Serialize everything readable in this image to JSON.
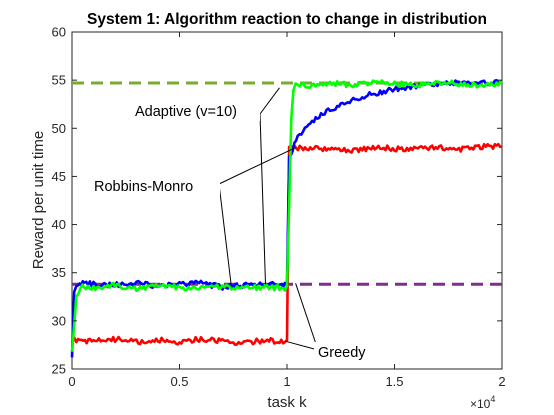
{
  "chart_data": {
    "type": "line",
    "title": "System 1: Algorithm reaction to change in distribution",
    "xlabel": "task k",
    "ylabel": "Reward per unit time",
    "x_multiplier": "×10",
    "x_multiplier_exp": "4",
    "xlim": [
      0,
      2
    ],
    "ylim": [
      25,
      60
    ],
    "xticks": [
      "0",
      "0.5",
      "1",
      "1.5",
      "2"
    ],
    "xtick_values": [
      0,
      0.5,
      1,
      1.5,
      2
    ],
    "yticks": [
      "25",
      "30",
      "35",
      "40",
      "45",
      "50",
      "55",
      "60"
    ],
    "ytick_values": [
      25,
      30,
      35,
      40,
      45,
      50,
      55,
      60
    ],
    "grid": false,
    "series": [
      {
        "color": "#ff0000",
        "x": [
          0.0,
          0.01,
          0.02,
          0.1,
          0.2,
          0.3,
          0.4,
          0.5,
          0.6,
          0.7,
          0.8,
          0.9,
          0.99,
          1.0,
          1.01,
          1.1,
          1.2,
          1.3,
          1.4,
          1.5,
          1.6,
          1.7,
          1.8,
          1.9,
          2.0
        ],
        "y": [
          28.0,
          28.2,
          28.0,
          27.9,
          28.1,
          27.8,
          28.0,
          27.8,
          28.1,
          27.9,
          27.7,
          28.0,
          27.8,
          28.0,
          48.0,
          47.9,
          47.9,
          47.7,
          48.0,
          47.9,
          47.8,
          48.1,
          47.8,
          48.1,
          48.1
        ]
      },
      {
        "color": "#0000ff",
        "x": [
          0.0,
          0.01,
          0.02,
          0.05,
          0.1,
          0.2,
          0.3,
          0.4,
          0.5,
          0.6,
          0.7,
          0.8,
          0.9,
          0.99,
          1.0,
          1.01,
          1.05,
          1.1,
          1.15,
          1.2,
          1.3,
          1.4,
          1.5,
          1.6,
          1.7,
          1.8,
          1.9,
          2.0
        ],
        "y": [
          26.2,
          33.0,
          33.6,
          33.9,
          33.8,
          33.7,
          34.0,
          33.6,
          33.8,
          33.9,
          33.5,
          33.7,
          33.8,
          33.7,
          33.8,
          47.0,
          49.0,
          50.3,
          51.2,
          52.0,
          52.9,
          53.6,
          54.1,
          54.4,
          54.6,
          54.7,
          54.7,
          54.8
        ]
      },
      {
        "color": "#00ff00",
        "x": [
          0.0,
          0.01,
          0.02,
          0.04,
          0.1,
          0.2,
          0.3,
          0.4,
          0.5,
          0.6,
          0.7,
          0.8,
          0.9,
          0.99,
          1.0,
          1.01,
          1.02,
          1.03,
          1.05,
          1.1,
          1.2,
          1.3,
          1.4,
          1.5,
          1.6,
          1.7,
          1.8,
          1.9,
          2.0
        ],
        "y": [
          26.8,
          29.5,
          32.5,
          33.6,
          33.4,
          33.7,
          33.3,
          33.6,
          33.5,
          33.3,
          33.6,
          33.4,
          33.5,
          33.4,
          33.6,
          42.0,
          51.0,
          54.2,
          54.6,
          54.4,
          54.7,
          54.5,
          54.8,
          54.6,
          54.5,
          54.8,
          54.6,
          54.5,
          54.7
        ]
      }
    ],
    "reference_lines": [
      {
        "y": 54.7,
        "color": "#77ac30",
        "style": "dashed"
      },
      {
        "y": 33.8,
        "color": "#7e2f8e",
        "style": "dashed"
      }
    ],
    "annotations": [
      {
        "text": "Adaptive (v=10)",
        "lines_to": [
          [
            0.9,
            33.8
          ],
          [
            0.965,
            54.2
          ]
        ]
      },
      {
        "text": "Robbins-Monro",
        "lines_to": [
          [
            0.74,
            33.8
          ],
          [
            1.04,
            48.0
          ]
        ]
      },
      {
        "text": "Greedy",
        "lines_to": [
          [
            0.99,
            27.9
          ],
          [
            1.04,
            33.9
          ]
        ]
      }
    ]
  }
}
